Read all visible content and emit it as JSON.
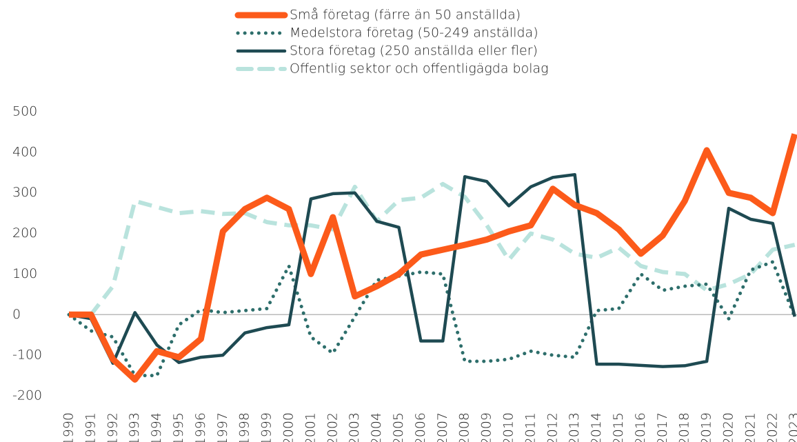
{
  "chart_data": {
    "type": "line",
    "categories": [
      "1990",
      "1991",
      "1992",
      "1993",
      "1994",
      "1995",
      "1996",
      "1997",
      "1998",
      "1999",
      "2000",
      "2001",
      "2002",
      "2003",
      "2004",
      "2005",
      "2006",
      "2007",
      "2008",
      "2009",
      "2010",
      "2011",
      "2012",
      "2013",
      "2014",
      "2015",
      "2016",
      "2017",
      "2018",
      "2019",
      "2020",
      "2021",
      "2022",
      "2023"
    ],
    "series": [
      {
        "name": "Små företag (färre än 50 anställda)",
        "color": "#fc5a1a",
        "style": "solid",
        "values": [
          0,
          0,
          -110,
          -160,
          -90,
          -105,
          -60,
          205,
          260,
          288,
          260,
          100,
          240,
          45,
          70,
          100,
          148,
          160,
          172,
          185,
          205,
          220,
          310,
          270,
          250,
          210,
          150,
          195,
          280,
          405,
          300,
          288,
          250,
          445
        ]
      },
      {
        "name": "Medelstora företag (50-249 anställda)",
        "color": "#2d6e6b",
        "style": "dotted",
        "values": [
          0,
          -40,
          -55,
          -150,
          -150,
          -25,
          12,
          5,
          10,
          15,
          120,
          -55,
          -95,
          -5,
          85,
          95,
          105,
          100,
          -115,
          -115,
          -110,
          -90,
          -100,
          -105,
          10,
          15,
          100,
          60,
          70,
          75,
          -10,
          110,
          130,
          -5
        ]
      },
      {
        "name": "Stora företag (250 anställda eller fler)",
        "color": "#1e4a52",
        "style": "solid-thin",
        "values": [
          0,
          -10,
          -120,
          5,
          -75,
          -118,
          -105,
          -100,
          -45,
          -32,
          -25,
          285,
          298,
          300,
          230,
          215,
          -65,
          -65,
          340,
          328,
          268,
          315,
          338,
          345,
          -122,
          -122,
          -125,
          -128,
          -126,
          -115,
          262,
          235,
          225,
          -5
        ]
      },
      {
        "name": "Offentlig sektor och offentligägda bolag",
        "color": "#b9e3dd",
        "style": "dashed",
        "values": [
          0,
          0,
          70,
          280,
          265,
          250,
          255,
          248,
          250,
          228,
          220,
          220,
          210,
          315,
          230,
          282,
          288,
          322,
          290,
          220,
          135,
          200,
          185,
          150,
          140,
          165,
          120,
          105,
          100,
          60,
          75,
          100,
          160,
          172
        ]
      }
    ],
    "ylim": [
      -200,
      500
    ],
    "yticks": [
      -200,
      -100,
      0,
      100,
      200,
      300,
      400,
      500
    ],
    "grid": false,
    "legend": "top"
  }
}
